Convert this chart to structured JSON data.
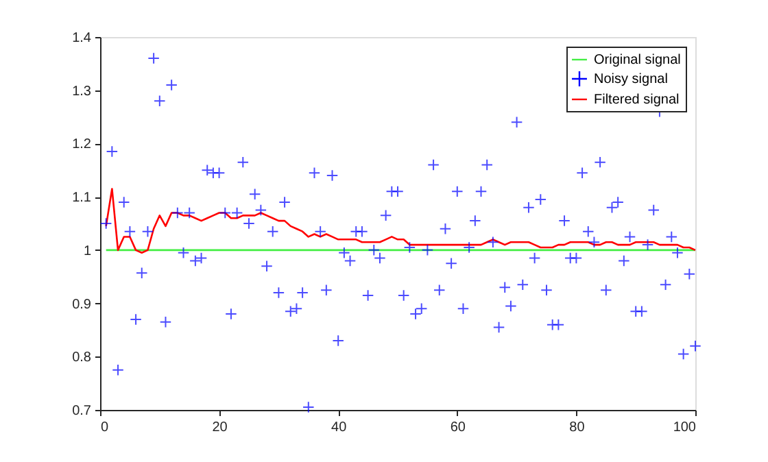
{
  "chart_data": {
    "type": "line",
    "xlim": [
      0,
      100
    ],
    "xticks": [
      0,
      20,
      40,
      60,
      80,
      100
    ],
    "ylim": [
      0.7,
      1.4
    ],
    "yticks": [
      0.7,
      0.8,
      0.9,
      1,
      1.1,
      1.2,
      1.3,
      1.4
    ],
    "grid": false,
    "legend": "top right",
    "series": [
      {
        "name": "Original signal",
        "type": "line",
        "color": "#44ee44",
        "marker": "none",
        "x": [
          1,
          100
        ],
        "values": [
          1,
          1
        ]
      },
      {
        "name": "Noisy signal",
        "type": "scatter",
        "color": "#0000ff",
        "marker": "cross",
        "x": [
          1,
          2,
          3,
          4,
          5,
          6,
          7,
          8,
          9,
          10,
          11,
          12,
          13,
          14,
          15,
          16,
          17,
          18,
          19,
          20,
          21,
          22,
          23,
          24,
          25,
          26,
          27,
          28,
          29,
          30,
          31,
          32,
          33,
          34,
          35,
          36,
          37,
          38,
          39,
          40,
          41,
          42,
          43,
          44,
          45,
          46,
          47,
          48,
          49,
          50,
          51,
          52,
          53,
          54,
          55,
          56,
          57,
          58,
          59,
          60,
          61,
          62,
          63,
          64,
          65,
          66,
          67,
          68,
          69,
          70,
          71,
          72,
          73,
          74,
          75,
          76,
          77,
          78,
          79,
          80,
          81,
          82,
          83,
          84,
          85,
          86,
          87,
          88,
          89,
          90,
          91,
          92,
          93,
          94,
          95,
          96,
          97,
          98,
          99,
          100
        ],
        "values": [
          1.05,
          1.185,
          0.775,
          1.09,
          1.035,
          0.87,
          0.957,
          1.035,
          1.36,
          1.28,
          0.865,
          1.31,
          1.07,
          0.995,
          1.07,
          0.98,
          0.985,
          1.15,
          1.145,
          1.145,
          1.07,
          0.88,
          1.07,
          1.165,
          1.05,
          1.105,
          1.075,
          0.97,
          1.035,
          0.92,
          1.09,
          0.885,
          0.89,
          0.92,
          0.705,
          1.145,
          1.035,
          0.925,
          1.14,
          0.83,
          0.995,
          0.98,
          1.035,
          1.035,
          0.915,
          1.0,
          0.985,
          1.065,
          1.11,
          1.11,
          0.915,
          1.005,
          0.88,
          0.89,
          1.0,
          1.16,
          0.925,
          1.04,
          0.975,
          1.11,
          0.89,
          1.005,
          1.055,
          1.11,
          1.16,
          1.015,
          0.855,
          0.93,
          0.895,
          1.24,
          0.935,
          1.08,
          0.985,
          1.095,
          0.925,
          0.86,
          0.86,
          1.055,
          0.985,
          0.985,
          1.145,
          1.035,
          1.015,
          1.165,
          0.925,
          1.08,
          1.09,
          0.98,
          1.025,
          0.885,
          0.885,
          1.01,
          1.075,
          1.26,
          0.935,
          1.025,
          0.995,
          0.805,
          0.955,
          0.82
        ]
      },
      {
        "name": "Filtered signal",
        "type": "line",
        "color": "#ff0000",
        "marker": "none",
        "x": [
          1,
          2,
          3,
          4,
          5,
          6,
          7,
          8,
          9,
          10,
          11,
          12,
          13,
          14,
          15,
          16,
          17,
          18,
          19,
          20,
          21,
          22,
          23,
          24,
          25,
          26,
          27,
          28,
          29,
          30,
          31,
          32,
          33,
          34,
          35,
          36,
          37,
          38,
          39,
          40,
          41,
          42,
          43,
          44,
          45,
          46,
          47,
          48,
          49,
          50,
          51,
          52,
          53,
          54,
          55,
          56,
          57,
          58,
          59,
          60,
          61,
          62,
          63,
          64,
          65,
          66,
          67,
          68,
          69,
          70,
          71,
          72,
          73,
          74,
          75,
          76,
          77,
          78,
          79,
          80,
          81,
          82,
          83,
          84,
          85,
          86,
          87,
          88,
          89,
          90,
          91,
          92,
          93,
          94,
          95,
          96,
          97,
          98,
          99,
          100
        ],
        "values": [
          1.045,
          1.115,
          1.0,
          1.025,
          1.025,
          1.0,
          0.995,
          1.0,
          1.04,
          1.065,
          1.045,
          1.07,
          1.07,
          1.065,
          1.065,
          1.06,
          1.055,
          1.06,
          1.065,
          1.07,
          1.07,
          1.06,
          1.06,
          1.065,
          1.065,
          1.065,
          1.07,
          1.065,
          1.06,
          1.055,
          1.055,
          1.045,
          1.04,
          1.035,
          1.025,
          1.03,
          1.025,
          1.03,
          1.025,
          1.02,
          1.02,
          1.02,
          1.02,
          1.015,
          1.015,
          1.015,
          1.015,
          1.02,
          1.025,
          1.02,
          1.02,
          1.01,
          1.01,
          1.01,
          1.01,
          1.01,
          1.01,
          1.01,
          1.01,
          1.01,
          1.01,
          1.01,
          1.01,
          1.01,
          1.015,
          1.02,
          1.015,
          1.01,
          1.015,
          1.015,
          1.015,
          1.015,
          1.01,
          1.005,
          1.005,
          1.005,
          1.01,
          1.01,
          1.015,
          1.015,
          1.015,
          1.015,
          1.01,
          1.01,
          1.015,
          1.015,
          1.01,
          1.01,
          1.01,
          1.015,
          1.015,
          1.015,
          1.015,
          1.01,
          1.01,
          1.01,
          1.01,
          1.005,
          1.005,
          1.0
        ]
      }
    ]
  }
}
